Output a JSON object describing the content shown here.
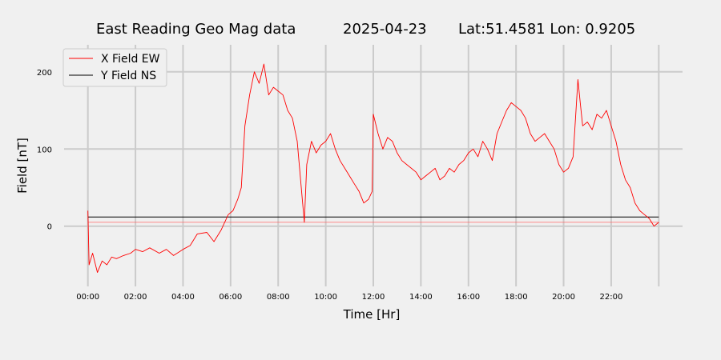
{
  "chart_data": {
    "type": "line",
    "title": {
      "name": "East Reading Geo Mag data",
      "date": "2025-04-23",
      "location": "Lat:51.4581  Lon: 0.9205"
    },
    "xlabel": "Time  [Hr]",
    "ylabel": "Field  [nT]",
    "xlim": [
      -1,
      25
    ],
    "ylim": [
      -78,
      235
    ],
    "x_ticks": [
      {
        "value": 0,
        "label": "00:00"
      },
      {
        "value": 2,
        "label": "02:00"
      },
      {
        "value": 4,
        "label": "04:00"
      },
      {
        "value": 6,
        "label": "06:00"
      },
      {
        "value": 8,
        "label": "08:00"
      },
      {
        "value": 10,
        "label": "10:00"
      },
      {
        "value": 12,
        "label": "12:00"
      },
      {
        "value": 14,
        "label": "14:00"
      },
      {
        "value": 16,
        "label": "16:00"
      },
      {
        "value": 18,
        "label": "18:00"
      },
      {
        "value": 20,
        "label": "20:00"
      },
      {
        "value": 22,
        "label": "22:00"
      }
    ],
    "y_ticks": [
      {
        "value": 0,
        "label": "0"
      },
      {
        "value": 100,
        "label": "100"
      },
      {
        "value": 200,
        "label": "200"
      }
    ],
    "grid": true,
    "legend_position": "top-left",
    "series": [
      {
        "name": "X Field EW",
        "color": "#ff0000",
        "x": [
          0,
          0.05,
          0.2,
          0.4,
          0.6,
          0.8,
          1.0,
          1.2,
          1.5,
          1.8,
          2.0,
          2.3,
          2.6,
          3.0,
          3.3,
          3.6,
          4.0,
          4.3,
          4.6,
          5.0,
          5.3,
          5.6,
          5.9,
          6.1,
          6.3,
          6.45,
          6.6,
          6.8,
          7.0,
          7.2,
          7.4,
          7.6,
          7.8,
          8.0,
          8.2,
          8.4,
          8.6,
          8.8,
          9.0,
          9.1,
          9.2,
          9.4,
          9.6,
          9.8,
          10.0,
          10.2,
          10.4,
          10.6,
          10.8,
          11.0,
          11.2,
          11.4,
          11.6,
          11.8,
          11.95,
          12.0,
          12.2,
          12.4,
          12.6,
          12.8,
          13.0,
          13.2,
          13.4,
          13.6,
          13.8,
          14.0,
          14.2,
          14.4,
          14.6,
          14.8,
          15.0,
          15.2,
          15.4,
          15.6,
          15.8,
          16.0,
          16.2,
          16.4,
          16.6,
          16.8,
          17.0,
          17.2,
          17.4,
          17.6,
          17.8,
          18.0,
          18.2,
          18.4,
          18.6,
          18.8,
          19.0,
          19.2,
          19.4,
          19.6,
          19.8,
          20.0,
          20.2,
          20.4,
          20.5,
          20.6,
          20.7,
          20.8,
          21.0,
          21.2,
          21.4,
          21.6,
          21.8,
          22.0,
          22.2,
          22.4,
          22.6,
          22.8,
          23.0,
          23.2,
          23.4,
          23.6,
          23.8,
          24.0
        ],
        "values": [
          20,
          -50,
          -35,
          -60,
          -45,
          -50,
          -40,
          -42,
          -38,
          -35,
          -30,
          -33,
          -28,
          -35,
          -30,
          -38,
          -30,
          -25,
          -10,
          -8,
          -20,
          -5,
          15,
          20,
          35,
          50,
          130,
          170,
          200,
          185,
          210,
          170,
          180,
          175,
          170,
          150,
          140,
          110,
          40,
          5,
          80,
          110,
          95,
          105,
          110,
          120,
          100,
          85,
          75,
          65,
          55,
          45,
          30,
          35,
          45,
          145,
          120,
          100,
          115,
          110,
          95,
          85,
          80,
          75,
          70,
          60,
          65,
          70,
          75,
          60,
          65,
          75,
          70,
          80,
          85,
          95,
          100,
          90,
          110,
          100,
          85,
          120,
          135,
          150,
          160,
          155,
          150,
          140,
          120,
          110,
          115,
          120,
          110,
          100,
          80,
          70,
          75,
          90,
          140,
          190,
          160,
          130,
          135,
          125,
          145,
          140,
          150,
          130,
          110,
          80,
          60,
          50,
          30,
          20,
          15,
          10,
          0,
          5
        ],
        "stroke_width": 0.9
      },
      {
        "name": "Y Field NS",
        "color": "#000000",
        "x": [
          0,
          24
        ],
        "values": [
          12,
          12
        ],
        "stroke_width": 1
      },
      {
        "name": "",
        "color": "#ff6666",
        "x": [
          0,
          24
        ],
        "values": [
          5,
          5
        ],
        "stroke_width": 0.8
      }
    ]
  }
}
